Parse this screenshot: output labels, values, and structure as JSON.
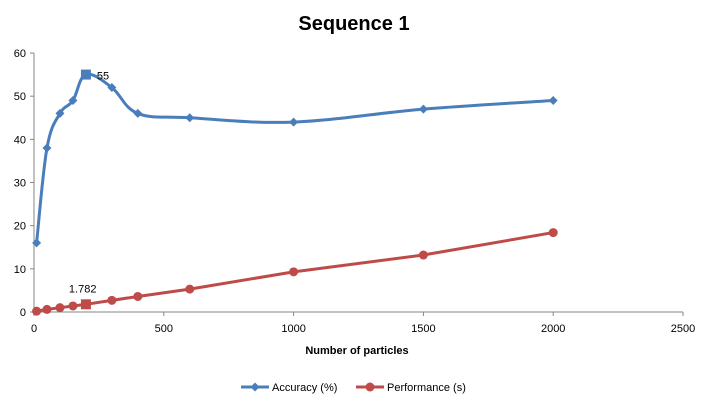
{
  "chart_data": {
    "type": "line",
    "title": "Sequence 1",
    "xlabel": "Number of particles",
    "ylabel": "",
    "xlim": [
      0,
      2500
    ],
    "ylim": [
      0,
      60
    ],
    "xticks": [
      "0",
      "500",
      "1000",
      "1500",
      "2000",
      "2500"
    ],
    "yticks": [
      "0",
      "10",
      "20",
      "30",
      "40",
      "50",
      "60"
    ],
    "grid": false,
    "legend_position": "bottom",
    "series": [
      {
        "name": "Accuracy (%)",
        "color": "#4a7ebb",
        "marker": "diamond",
        "smooth": true,
        "x": [
          10,
          50,
          100,
          150,
          200,
          300,
          400,
          600,
          1000,
          1500,
          2000
        ],
        "y": [
          16,
          38,
          46,
          49,
          55,
          52,
          46,
          45,
          44,
          47,
          49
        ],
        "highlight_index": 4,
        "annotation": "55"
      },
      {
        "name": "Performance (s)",
        "color": "#be4b48",
        "marker": "circle",
        "smooth": false,
        "x": [
          10,
          50,
          100,
          150,
          200,
          300,
          400,
          600,
          1000,
          1500,
          2000
        ],
        "y": [
          0.2,
          0.6,
          1.0,
          1.4,
          1.782,
          2.7,
          3.6,
          5.3,
          9.3,
          13.2,
          18.4
        ],
        "highlight_index": 4,
        "annotation": "1.782"
      }
    ]
  }
}
